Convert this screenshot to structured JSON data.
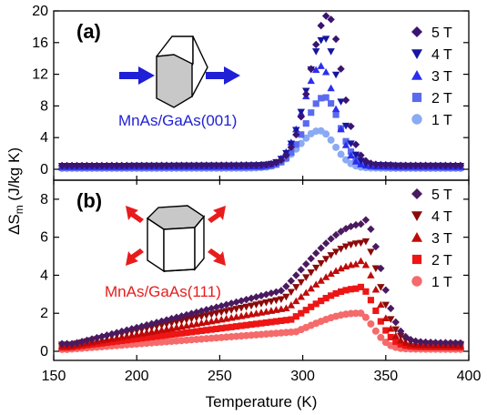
{
  "chart_data": {
    "type": "scatter",
    "xlabel": "Temperature (K)",
    "ylabel_main": "ΔS",
    "ylabel_sub": "m",
    "ylabel_tail": " (J/kg K)",
    "xlim": [
      150,
      400
    ],
    "x_ticks": [
      "150",
      "200",
      "250",
      "300",
      "350",
      "400"
    ],
    "panels": [
      {
        "id": "a",
        "letter": "(a)",
        "sample_label": "MnAs/GaAs(001)",
        "sample_color": "#1f1fd6",
        "ylim": [
          0,
          20
        ],
        "y_ticks": [
          "0",
          "4",
          "8",
          "12",
          "16",
          "20"
        ],
        "series": [
          {
            "name": "5 T",
            "marker": "diamond",
            "color": "#3a1470",
            "peak": 18.8,
            "peak_x": 315,
            "width_low": 15,
            "width_high": 12,
            "base": 0.45,
            "bg": 0.2
          },
          {
            "name": "4 T",
            "marker": "triangle-down",
            "color": "#1515a0",
            "peak": 16.0,
            "peak_x": 313,
            "width_low": 15,
            "width_high": 12,
            "base": 0.4,
            "bg": 0.18
          },
          {
            "name": "3 T",
            "marker": "triangle-up",
            "color": "#2d2df0",
            "peak": 12.6,
            "peak_x": 311,
            "width_low": 15,
            "width_high": 12,
            "base": 0.3,
            "bg": 0.15
          },
          {
            "name": "2 T",
            "marker": "square",
            "color": "#5a6aee",
            "peak": 8.8,
            "peak_x": 313,
            "width_low": 16,
            "width_high": 13,
            "base": 0.2,
            "bg": 0.12
          },
          {
            "name": "1 T",
            "marker": "circle",
            "color": "#8aaaf4",
            "peak": 4.7,
            "peak_x": 310,
            "width_low": 17,
            "width_high": 13,
            "base": 0.1,
            "bg": 0.08
          }
        ]
      },
      {
        "id": "b",
        "letter": "(b)",
        "sample_label": "MnAs/GaAs(111)",
        "sample_color": "#e81c1c",
        "ylim": [
          0,
          9
        ],
        "y_ticks": [
          "0",
          "2",
          "4",
          "6",
          "8"
        ],
        "series": [
          {
            "name": "5 T",
            "marker": "diamond",
            "color": "#4a1a60",
            "peak": 6.7,
            "peak_x": 337,
            "width_low": 60,
            "width_high": 14,
            "base": 0.4,
            "bg": 0.25
          },
          {
            "name": "4 T",
            "marker": "triangle-down",
            "color": "#8b0a0a",
            "peak": 5.7,
            "peak_x": 336,
            "width_low": 58,
            "width_high": 14,
            "base": 0.35,
            "bg": 0.2
          },
          {
            "name": "3 T",
            "marker": "triangle-up",
            "color": "#c00a0a",
            "peak": 4.6,
            "peak_x": 335,
            "width_low": 55,
            "width_high": 14,
            "base": 0.28,
            "bg": 0.15
          },
          {
            "name": "2 T",
            "marker": "square",
            "color": "#ee1515",
            "peak": 3.3,
            "peak_x": 334,
            "width_low": 52,
            "width_high": 14,
            "base": 0.2,
            "bg": 0.1
          },
          {
            "name": "1 T",
            "marker": "circle",
            "color": "#f56a6a",
            "peak": 2.0,
            "peak_x": 333,
            "width_low": 48,
            "width_high": 13,
            "base": 0.1,
            "bg": 0.05
          }
        ]
      }
    ]
  }
}
